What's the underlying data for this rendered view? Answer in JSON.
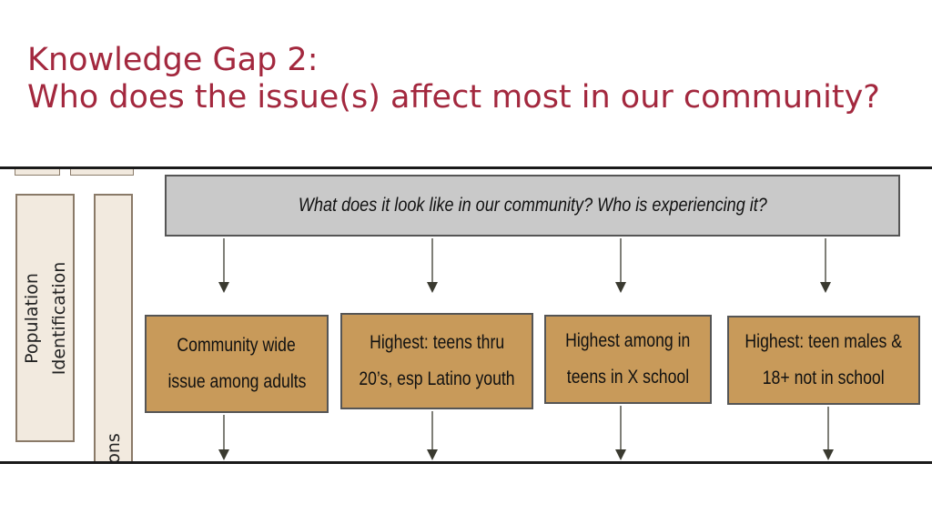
{
  "title": {
    "line1": "Knowledge Gap 2:",
    "line2": "Who does the issue(s) affect most in our community?"
  },
  "side_labels": {
    "population_identification": [
      "Population",
      "Identification"
    ],
    "partial_label": "ons"
  },
  "header": {
    "text": "What does it look like in our community? Who is experiencing it?"
  },
  "boxes": [
    {
      "lines": [
        "Community wide",
        "issue among adults"
      ]
    },
    {
      "lines": [
        "Highest: teens thru",
        "20’s, esp Latino youth"
      ]
    },
    {
      "lines": [
        "Highest among in",
        "teens in X school"
      ]
    },
    {
      "lines": [
        "Highest: teen males &",
        "18+ not in school"
      ]
    }
  ],
  "colors": {
    "title": "#a3283e",
    "header_fill": "#c9c9c9",
    "box_fill": "#c89a5a",
    "side_fill": "#f2eadf",
    "arrow": "#3a3a30"
  }
}
